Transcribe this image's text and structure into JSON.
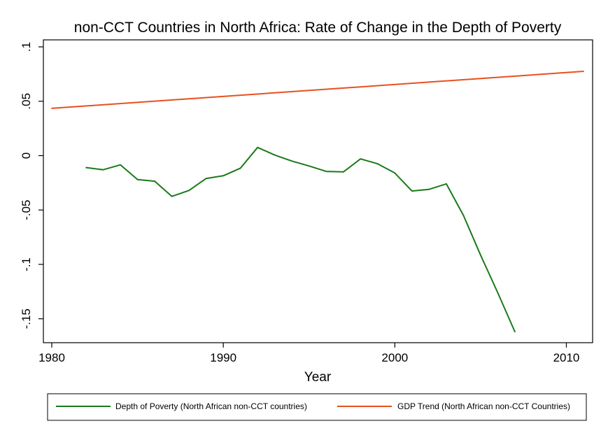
{
  "chart_data": {
    "type": "line",
    "title": "non-CCT Countries in North Africa: Rate of Change in the Depth of Poverty",
    "xlabel": "Year",
    "ylabel": "",
    "xlim": [
      1980,
      2011
    ],
    "ylim": [
      -0.163,
      0.1
    ],
    "x_ticks": [
      {
        "value": 1980,
        "label": "1980"
      },
      {
        "value": 1990,
        "label": "1990"
      },
      {
        "value": 2000,
        "label": "2000"
      },
      {
        "value": 2010,
        "label": "2010"
      }
    ],
    "y_ticks": [
      {
        "value": 0.1,
        "label": ".1"
      },
      {
        "value": 0.05,
        "label": ".05"
      },
      {
        "value": 0,
        "label": "0"
      },
      {
        "value": -0.05,
        "label": "-.05"
      },
      {
        "value": -0.1,
        "label": "-.1"
      },
      {
        "value": -0.15,
        "label": "-.15"
      }
    ],
    "grid": false,
    "legend_position": "bottom",
    "series": [
      {
        "name": "Depth of Poverty (North African non-CCT countries)",
        "color": "#1a7a1a",
        "points": [
          [
            1982,
            -0.011
          ],
          [
            1983,
            -0.013
          ],
          [
            1984,
            -0.0085
          ],
          [
            1985,
            -0.022
          ],
          [
            1986,
            -0.0235
          ],
          [
            1987,
            -0.0375
          ],
          [
            1988,
            -0.032
          ],
          [
            1989,
            -0.021
          ],
          [
            1990,
            -0.0185
          ],
          [
            1991,
            -0.0115
          ],
          [
            1992,
            0.0075
          ],
          [
            1993,
            0.0005
          ],
          [
            1994,
            -0.005
          ],
          [
            1995,
            -0.0095
          ],
          [
            1996,
            -0.0145
          ],
          [
            1997,
            -0.015
          ],
          [
            1998,
            -0.003
          ],
          [
            1999,
            -0.0075
          ],
          [
            2000,
            -0.016
          ],
          [
            2001,
            -0.0325
          ],
          [
            2002,
            -0.031
          ],
          [
            2003,
            -0.026
          ],
          [
            2004,
            -0.055
          ],
          [
            2005,
            -0.0915
          ],
          [
            2006,
            -0.126
          ],
          [
            2007,
            -0.162
          ]
        ]
      },
      {
        "name": "GDP Trend (North African non-CCT Countries)",
        "color": "#e8501e",
        "points": [
          [
            1980,
            0.0435
          ],
          [
            2011,
            0.0775
          ]
        ]
      }
    ]
  }
}
